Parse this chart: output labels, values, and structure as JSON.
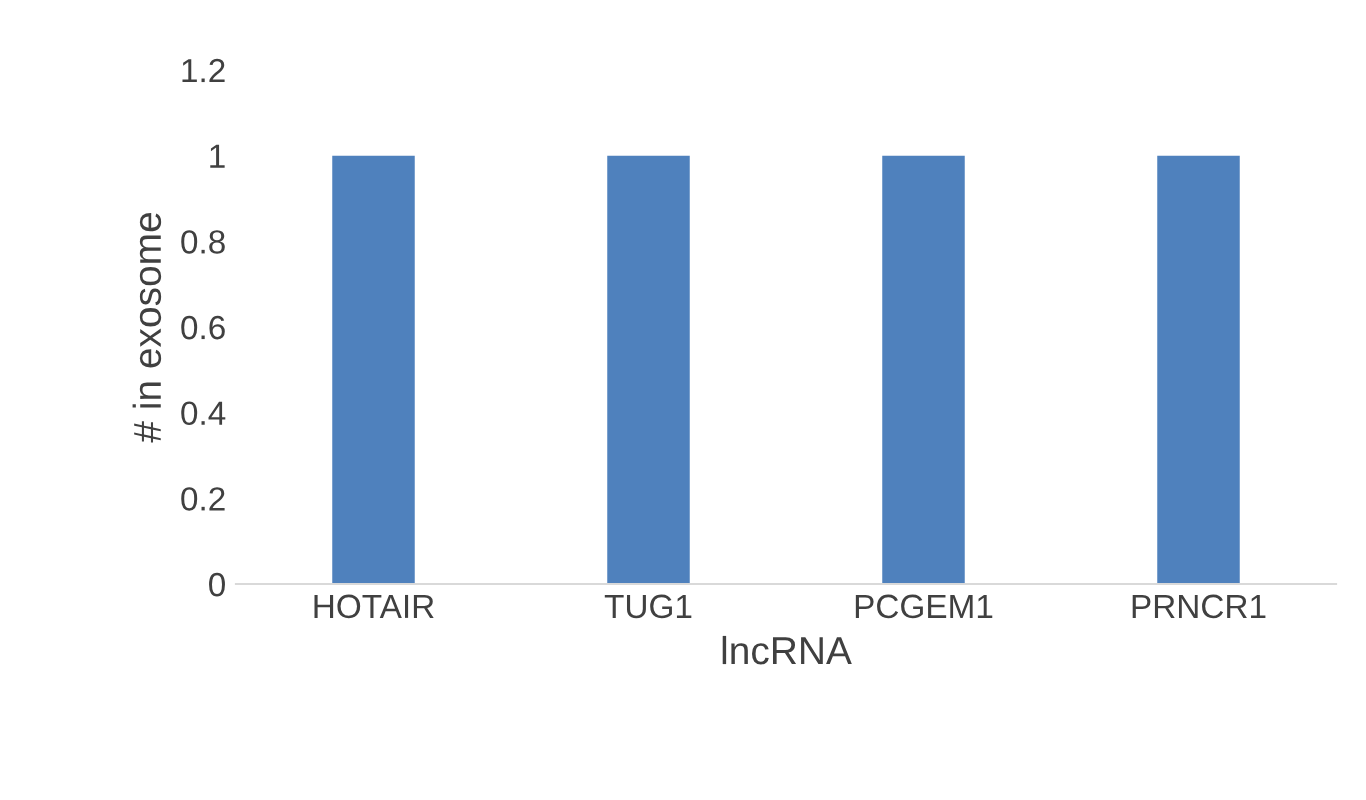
{
  "chart_data": {
    "type": "bar",
    "xlabel": "lncRNA",
    "ylabel": "# in exosome",
    "categories": [
      "HOTAIR",
      "TUG1",
      "PCGEM1",
      "PRNCR1"
    ],
    "values": [
      1,
      1,
      1,
      1
    ],
    "color": "#4f81bd",
    "ylim": [
      0,
      1.2
    ],
    "yticks": [
      0,
      0.2,
      0.4,
      0.6,
      0.8,
      1,
      1.2
    ],
    "grid": false,
    "legend": false
  }
}
